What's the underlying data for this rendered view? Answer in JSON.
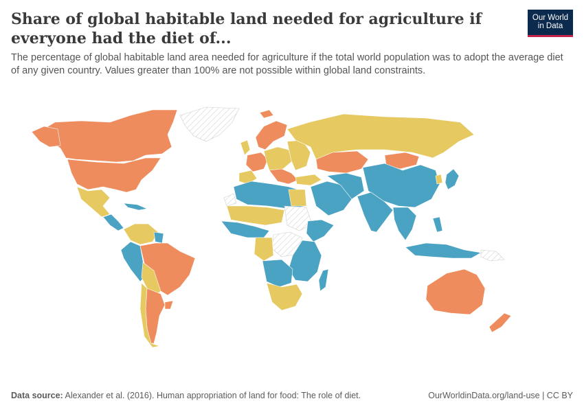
{
  "title": "Share of global habitable land needed for agriculture if everyone had the diet of...",
  "subtitle": "The percentage of global habitable land area needed for agriculture if the total world population was to adopt the average diet of any given country. Values greater than 100% are not possible within global land constraints.",
  "logo": {
    "line1": "Our World",
    "line2": "in Data"
  },
  "footer": {
    "source_label": "Data source:",
    "source_text": "Alexander et al. (2016). Human appropriation of land for food: The role of diet.",
    "url_text": "OurWorldinData.org/land-use | CC BY"
  },
  "colors": {
    "low": "#4aa3c2",
    "mid": "#e6c960",
    "high": "#ee8c5e",
    "nodata_stroke": "#cfcfcf",
    "border": "#ffffff"
  },
  "map_data": {
    "type": "choropleth",
    "classes": [
      "low",
      "mid",
      "high",
      "no-data"
    ]
  }
}
